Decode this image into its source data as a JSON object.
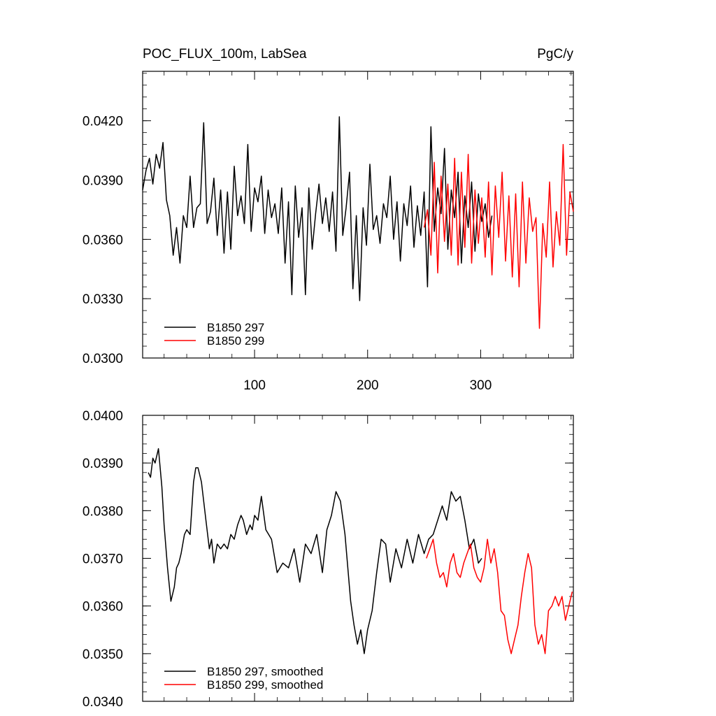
{
  "figure": {
    "title_left": "POC_FLUX_100m, LabSea",
    "title_right": "PgC/y"
  },
  "chart_data": [
    {
      "type": "line",
      "title": "POC_FLUX_100m, LabSea",
      "units": "PgC/y",
      "xlim": [
        1,
        382
      ],
      "ylim": [
        0.03,
        0.0445
      ],
      "xticks": [
        100,
        200,
        300
      ],
      "xtick_labels": [
        "100",
        "200",
        "300"
      ],
      "yticks": [
        0.03,
        0.033,
        0.036,
        0.039,
        0.042
      ],
      "ytick_labels": [
        "0.0300",
        "0.0330",
        "0.0360",
        "0.0390",
        "0.0420"
      ],
      "grid": false,
      "legend_position": "bottom-left",
      "series": [
        {
          "name": "B1850 297",
          "color": "#000000",
          "x": [
            1,
            4,
            7,
            10,
            13,
            16,
            19,
            22,
            25,
            28,
            31,
            34,
            37,
            40,
            43,
            46,
            49,
            52,
            55,
            58,
            61,
            64,
            67,
            70,
            73,
            76,
            79,
            82,
            85,
            88,
            91,
            94,
            97,
            100,
            103,
            106,
            109,
            112,
            115,
            118,
            121,
            124,
            127,
            130,
            133,
            136,
            139,
            142,
            145,
            148,
            151,
            154,
            157,
            160,
            163,
            166,
            169,
            172,
            175,
            178,
            181,
            184,
            187,
            190,
            193,
            196,
            199,
            202,
            205,
            208,
            211,
            214,
            217,
            220,
            223,
            226,
            229,
            232,
            235,
            238,
            241,
            244,
            247,
            250,
            253,
            256,
            259,
            262,
            265,
            268,
            271,
            274,
            277,
            280,
            283,
            286,
            289,
            292,
            295,
            298,
            301,
            304,
            307,
            310
          ],
          "y": [
            0.0385,
            0.0395,
            0.0401,
            0.0388,
            0.0403,
            0.0396,
            0.0409,
            0.038,
            0.0372,
            0.0352,
            0.0366,
            0.0348,
            0.0372,
            0.0366,
            0.0392,
            0.0366,
            0.0376,
            0.0378,
            0.0419,
            0.0368,
            0.0374,
            0.0391,
            0.0362,
            0.0385,
            0.0353,
            0.0384,
            0.0355,
            0.0397,
            0.0372,
            0.0382,
            0.0368,
            0.0408,
            0.0364,
            0.0386,
            0.0379,
            0.0392,
            0.0363,
            0.0385,
            0.0371,
            0.0378,
            0.0363,
            0.0386,
            0.0348,
            0.0379,
            0.0332,
            0.0387,
            0.0361,
            0.0376,
            0.0332,
            0.0386,
            0.0355,
            0.0373,
            0.0388,
            0.0368,
            0.0381,
            0.0364,
            0.0384,
            0.0354,
            0.0422,
            0.0362,
            0.0376,
            0.0394,
            0.0335,
            0.0372,
            0.0329,
            0.0376,
            0.0357,
            0.0398,
            0.0365,
            0.0372,
            0.0358,
            0.0378,
            0.0371,
            0.0392,
            0.036,
            0.0379,
            0.0349,
            0.0378,
            0.0367,
            0.0387,
            0.0356,
            0.0377,
            0.0362,
            0.0384,
            0.0336,
            0.0417,
            0.0364,
            0.0386,
            0.0373,
            0.0406,
            0.0355,
            0.0385,
            0.0371,
            0.0394,
            0.0348,
            0.0382,
            0.0366,
            0.0389,
            0.0354,
            0.0383,
            0.0369,
            0.0378,
            0.0361,
            0.0372
          ]
        },
        {
          "name": "B1850 299",
          "color": "#ff0000",
          "x": [
            250,
            253,
            256,
            259,
            262,
            265,
            268,
            271,
            274,
            277,
            280,
            283,
            286,
            289,
            292,
            295,
            298,
            301,
            304,
            307,
            310,
            313,
            316,
            319,
            322,
            325,
            328,
            331,
            334,
            337,
            340,
            343,
            346,
            349,
            352,
            355,
            358,
            361,
            364,
            367,
            370,
            373,
            376,
            379,
            382
          ],
          "y": [
            0.0366,
            0.0375,
            0.0352,
            0.0399,
            0.0343,
            0.0392,
            0.0359,
            0.0388,
            0.0352,
            0.0401,
            0.0347,
            0.0394,
            0.0356,
            0.0403,
            0.0348,
            0.0385,
            0.0358,
            0.0381,
            0.0351,
            0.0389,
            0.0342,
            0.0387,
            0.0361,
            0.0394,
            0.0349,
            0.0382,
            0.0341,
            0.0383,
            0.0336,
            0.0389,
            0.0348,
            0.0381,
            0.0364,
            0.0371,
            0.0315,
            0.0368,
            0.0351,
            0.0389,
            0.0346,
            0.0374,
            0.0357,
            0.0408,
            0.0352,
            0.0384,
            0.0374
          ]
        }
      ]
    },
    {
      "type": "line",
      "xlim": [
        1,
        382
      ],
      "ylim": [
        0.034,
        0.04
      ],
      "xticks": [
        100,
        200,
        300
      ],
      "yticks": [
        0.034,
        0.035,
        0.036,
        0.037,
        0.038,
        0.039,
        0.04
      ],
      "ytick_labels": [
        "0.0340",
        "0.0350",
        "0.0360",
        "0.0370",
        "0.0380",
        "0.0390",
        "0.0400"
      ],
      "grid": false,
      "legend_position": "bottom-left",
      "series": [
        {
          "name": "B1850 297, smoothed",
          "color": "#000000",
          "x": [
            6,
            8,
            10,
            12,
            15,
            18,
            20,
            23,
            26,
            29,
            31,
            33,
            35,
            38,
            40,
            43,
            46,
            48,
            50,
            53,
            55,
            57,
            60,
            62,
            64,
            67,
            70,
            73,
            76,
            79,
            82,
            85,
            88,
            90,
            93,
            96,
            98,
            100,
            103,
            106,
            110,
            115,
            120,
            125,
            130,
            135,
            140,
            145,
            150,
            155,
            160,
            164,
            168,
            172,
            176,
            180,
            185,
            188,
            191,
            194,
            197,
            200,
            204,
            208,
            212,
            216,
            220,
            225,
            230,
            235,
            240,
            245,
            250,
            254,
            258,
            262,
            266,
            270,
            274,
            278,
            282,
            286,
            290,
            294,
            298,
            301
          ],
          "y": [
            0.0388,
            0.0387,
            0.0391,
            0.039,
            0.0393,
            0.0385,
            0.0377,
            0.0368,
            0.0361,
            0.0364,
            0.0368,
            0.0369,
            0.0371,
            0.0375,
            0.0376,
            0.0375,
            0.0386,
            0.0389,
            0.0389,
            0.0386,
            0.0382,
            0.0378,
            0.0372,
            0.0374,
            0.0369,
            0.0373,
            0.0372,
            0.0373,
            0.0372,
            0.0375,
            0.0374,
            0.0377,
            0.0379,
            0.0378,
            0.0375,
            0.0377,
            0.0376,
            0.0379,
            0.0378,
            0.0383,
            0.0376,
            0.0374,
            0.0367,
            0.0369,
            0.0368,
            0.0372,
            0.0365,
            0.0373,
            0.0371,
            0.0375,
            0.0367,
            0.0376,
            0.0379,
            0.0384,
            0.0382,
            0.0375,
            0.0361,
            0.0356,
            0.0352,
            0.0355,
            0.035,
            0.0355,
            0.0359,
            0.0367,
            0.0374,
            0.0373,
            0.0365,
            0.0372,
            0.0368,
            0.0374,
            0.0369,
            0.0375,
            0.0371,
            0.0374,
            0.0375,
            0.0378,
            0.0381,
            0.0378,
            0.0384,
            0.0382,
            0.0383,
            0.0378,
            0.0372,
            0.0374,
            0.0369,
            0.037
          ]
        },
        {
          "name": "B1850 299, smoothed",
          "color": "#ff0000",
          "x": [
            252,
            255,
            258,
            261,
            264,
            267,
            270,
            273,
            276,
            279,
            282,
            285,
            288,
            291,
            294,
            297,
            300,
            303,
            306,
            309,
            312,
            315,
            318,
            321,
            324,
            327,
            330,
            333,
            336,
            339,
            342,
            345,
            348,
            351,
            354,
            357,
            360,
            363,
            366,
            369,
            372,
            375,
            378,
            381
          ],
          "y": [
            0.037,
            0.0372,
            0.0374,
            0.0369,
            0.0366,
            0.0367,
            0.0364,
            0.0369,
            0.0371,
            0.0367,
            0.0366,
            0.0369,
            0.0371,
            0.0373,
            0.0368,
            0.0366,
            0.0365,
            0.0368,
            0.0374,
            0.0369,
            0.0372,
            0.0367,
            0.0359,
            0.0358,
            0.0353,
            0.035,
            0.0353,
            0.0356,
            0.0362,
            0.0367,
            0.0371,
            0.0368,
            0.0356,
            0.0352,
            0.0354,
            0.035,
            0.0359,
            0.036,
            0.0362,
            0.036,
            0.0362,
            0.0357,
            0.036,
            0.0363
          ]
        }
      ]
    }
  ]
}
